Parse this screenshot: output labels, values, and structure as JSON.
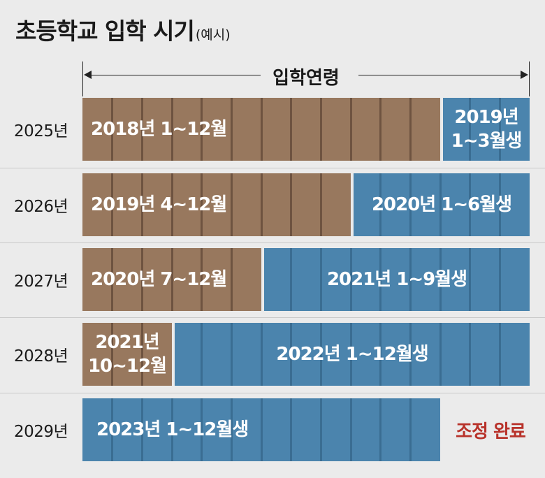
{
  "title": "초등학교 입학 시기",
  "subtitle": "(예시)",
  "axis_label": "입학연령",
  "rows": [
    {
      "year": "2025년",
      "segments": [
        {
          "label": "2018년 1~12월",
          "months": 12,
          "color": "brown"
        },
        {
          "label": "2019년\n1~3월생",
          "months": 3,
          "color": "blue"
        }
      ]
    },
    {
      "year": "2026년",
      "segments": [
        {
          "label": "2019년 4~12월",
          "months": 9,
          "color": "brown"
        },
        {
          "label": "2020년 1~6월생",
          "months": 6,
          "color": "blue"
        }
      ]
    },
    {
      "year": "2027년",
      "segments": [
        {
          "label": "2020년 7~12월",
          "months": 6,
          "color": "brown"
        },
        {
          "label": "2021년 1~9월생",
          "months": 9,
          "color": "blue"
        }
      ]
    },
    {
      "year": "2028년",
      "segments": [
        {
          "label": "2021년\n10~12월",
          "months": 3,
          "color": "brown"
        },
        {
          "label": "2022년 1~12월생",
          "months": 12,
          "color": "blue"
        }
      ]
    },
    {
      "year": "2029년",
      "segments": [
        {
          "label": "2023년 1~12월생",
          "months": 12,
          "color": "blue"
        }
      ],
      "note": "조정 완료"
    }
  ],
  "colors": {
    "brown": "#98785e",
    "blue": "#4b84ad",
    "note": "#b8322a"
  }
}
